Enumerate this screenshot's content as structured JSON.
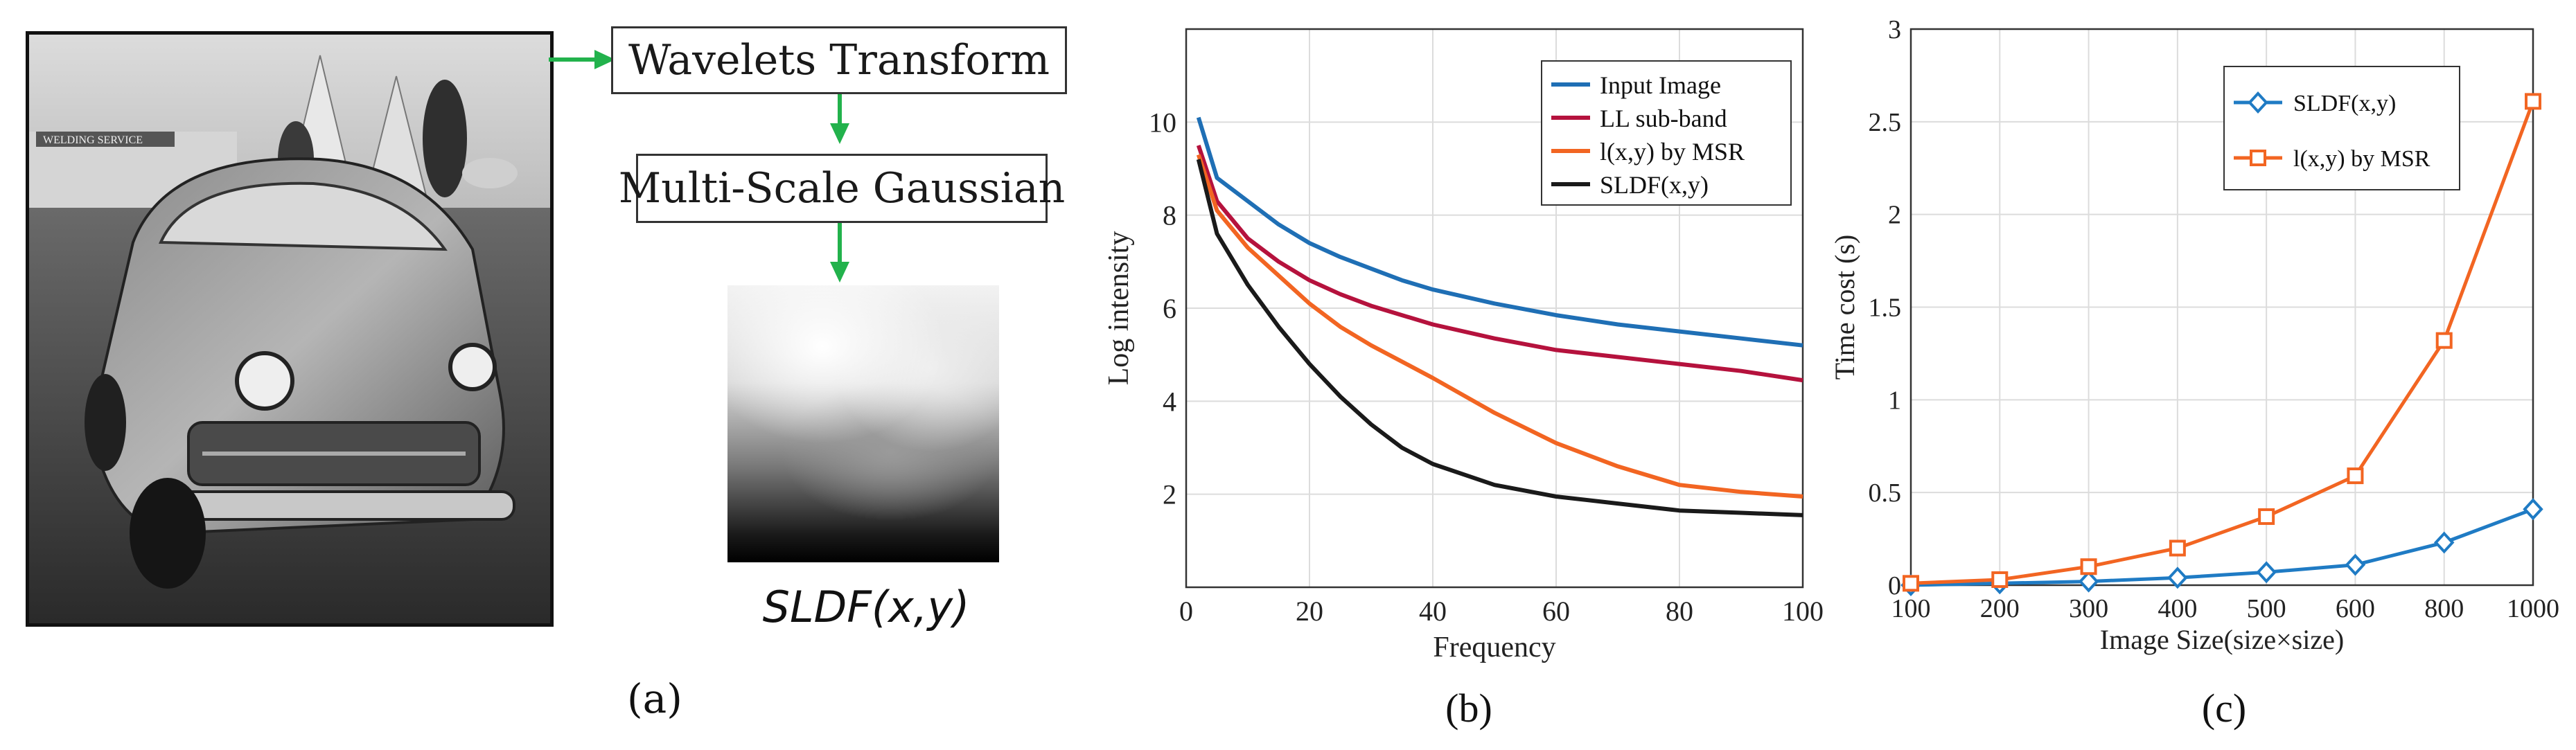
{
  "panel_a": {
    "label": "(a)",
    "photo_alt_sign": "WELDING SERVICE",
    "steps": [
      "Wavelets Transform",
      "Multi-Scale Gaussian"
    ],
    "output_label": "SLDF(x,y)",
    "arrow_color": "#22b24c"
  },
  "chart_data": [
    {
      "type": "line",
      "panel_label": "(b)",
      "xlabel": "Frequency",
      "ylabel": "Log intensity",
      "xlim": [
        0,
        100
      ],
      "ylim": [
        0,
        12
      ],
      "xticks": [
        "0",
        "20",
        "40",
        "60",
        "80",
        "100"
      ],
      "yticks": [
        "2",
        "4",
        "6",
        "8",
        "10"
      ],
      "grid": true,
      "legend_position": "top-right",
      "x": [
        2,
        5,
        10,
        15,
        20,
        25,
        30,
        35,
        40,
        50,
        60,
        70,
        80,
        90,
        100
      ],
      "series": [
        {
          "name": "Input Image",
          "color": "#1f6fb5",
          "values": [
            10.1,
            8.8,
            8.3,
            7.8,
            7.4,
            7.1,
            6.85,
            6.6,
            6.4,
            6.1,
            5.85,
            5.65,
            5.5,
            5.35,
            5.2
          ]
        },
        {
          "name": "LL sub-band",
          "color": "#b5123d",
          "values": [
            9.5,
            8.3,
            7.5,
            7.0,
            6.6,
            6.3,
            6.05,
            5.85,
            5.65,
            5.35,
            5.1,
            4.95,
            4.8,
            4.65,
            4.45
          ]
        },
        {
          "name": "l(x,y) by MSR",
          "color": "#f26522",
          "values": [
            9.3,
            8.1,
            7.3,
            6.7,
            6.1,
            5.6,
            5.2,
            4.85,
            4.5,
            3.75,
            3.1,
            2.6,
            2.2,
            2.05,
            1.95
          ]
        },
        {
          "name": "SLDF(x,y)",
          "color": "#1a1a1a",
          "values": [
            9.2,
            7.6,
            6.5,
            5.6,
            4.8,
            4.1,
            3.5,
            3.0,
            2.65,
            2.2,
            1.95,
            1.8,
            1.65,
            1.6,
            1.55
          ]
        }
      ]
    },
    {
      "type": "line",
      "panel_label": "(c)",
      "xlabel": "Image Size(size×size)",
      "ylabel": "Time cost (s)",
      "ylim": [
        0,
        3
      ],
      "categories": [
        "100",
        "200",
        "300",
        "400",
        "500",
        "600",
        "800",
        "1000"
      ],
      "yticks": [
        "0",
        "0.5",
        "1",
        "1.5",
        "2",
        "2.5",
        "3"
      ],
      "grid": true,
      "legend_position": "top-right",
      "series": [
        {
          "name": "SLDF(x,y)",
          "color": "#1f7bc4",
          "marker": "diamond",
          "values": [
            0.0,
            0.01,
            0.02,
            0.04,
            0.07,
            0.11,
            0.23,
            0.41
          ]
        },
        {
          "name": "l(x,y) by MSR",
          "color": "#f26522",
          "marker": "square",
          "values": [
            0.01,
            0.03,
            0.1,
            0.2,
            0.37,
            0.59,
            1.32,
            2.61
          ]
        }
      ]
    }
  ]
}
